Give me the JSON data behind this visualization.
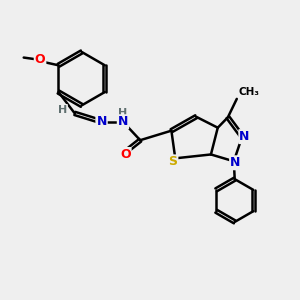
{
  "background_color": "#efefef",
  "bond_color": "#000000",
  "atom_colors": {
    "N": "#0000cc",
    "O": "#ff0000",
    "S": "#ccaa00",
    "H": "#607070",
    "C": "#000000",
    "Me": "#000000"
  },
  "figsize": [
    3.0,
    3.0
  ],
  "dpi": 100
}
